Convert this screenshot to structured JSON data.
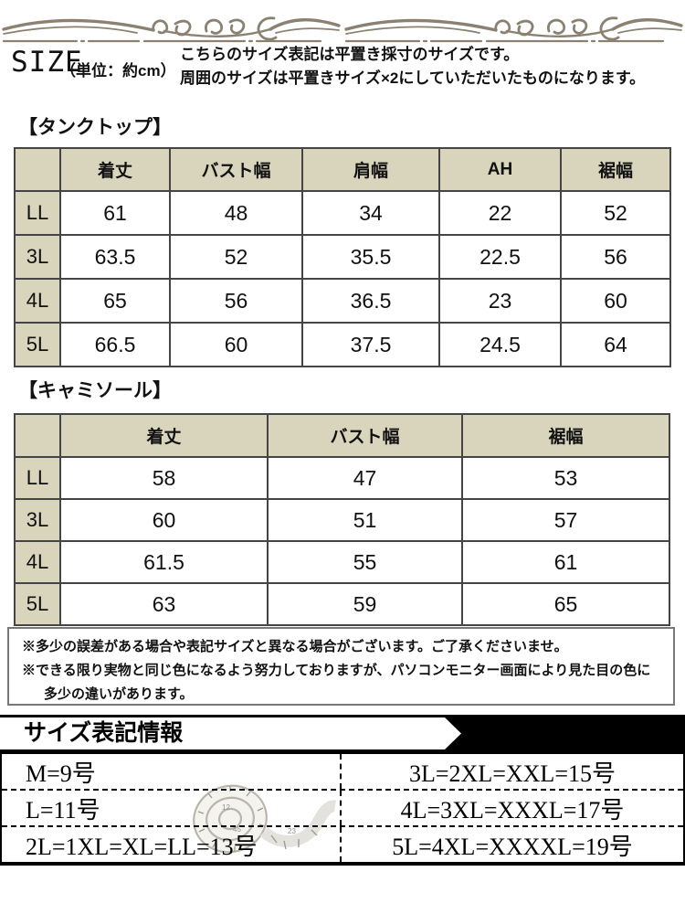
{
  "colors": {
    "header-bg": "#d9d5bc",
    "table-border": "#454545",
    "banner-bg": "#000000",
    "ornament": "#8a8171",
    "note-border": "#787878"
  },
  "header": {
    "size_label": "SIZE",
    "unit_label": "（単位：約cm）",
    "description_line1": "こちらのサイズ表記は平置き採寸のサイズです。",
    "description_line2": "周囲のサイズは平置きサイズ×2にしていただいたものになります。"
  },
  "tables": [
    {
      "title": "【タンクトップ】",
      "columns": [
        "着丈",
        "バスト幅",
        "肩幅",
        "AH",
        "裾幅"
      ],
      "rows": [
        {
          "size": "LL",
          "values": [
            "61",
            "48",
            "34",
            "22",
            "52"
          ]
        },
        {
          "size": "3L",
          "values": [
            "63.5",
            "52",
            "35.5",
            "22.5",
            "56"
          ]
        },
        {
          "size": "4L",
          "values": [
            "65",
            "56",
            "36.5",
            "23",
            "60"
          ]
        },
        {
          "size": "5L",
          "values": [
            "66.5",
            "60",
            "37.5",
            "24.5",
            "64"
          ]
        }
      ]
    },
    {
      "title": "【キャミソール】",
      "columns": [
        "着丈",
        "バスト幅",
        "裾幅"
      ],
      "rows": [
        {
          "size": "LL",
          "values": [
            "58",
            "47",
            "53"
          ]
        },
        {
          "size": "3L",
          "values": [
            "60",
            "51",
            "57"
          ]
        },
        {
          "size": "4L",
          "values": [
            "61.5",
            "55",
            "61"
          ]
        },
        {
          "size": "5L",
          "values": [
            "63",
            "59",
            "65"
          ]
        }
      ]
    }
  ],
  "notes": [
    "※多少の誤差がある場合や表記サイズと異なる場合がございます。ご了承くださいませ。",
    "※できる限り実物と同じ色になるよう努力しておりますが、パソコンモニター画面により見た目の色に多少の違いがあります。"
  ],
  "size_info": {
    "banner_title": "サイズ表記情報",
    "rows": [
      {
        "left": "M=9号",
        "right": "3L=2XL=XXL=15号"
      },
      {
        "left": "L=11号",
        "right": "4L=3XL=XXXL=17号"
      },
      {
        "left": "2L=1XL=XL=LL=13号",
        "right": "5L=4XL=XXXXL=19号"
      }
    ]
  },
  "decorations": {
    "top_border": "scrollwork-divider",
    "tape_image": "measuring-tape"
  }
}
